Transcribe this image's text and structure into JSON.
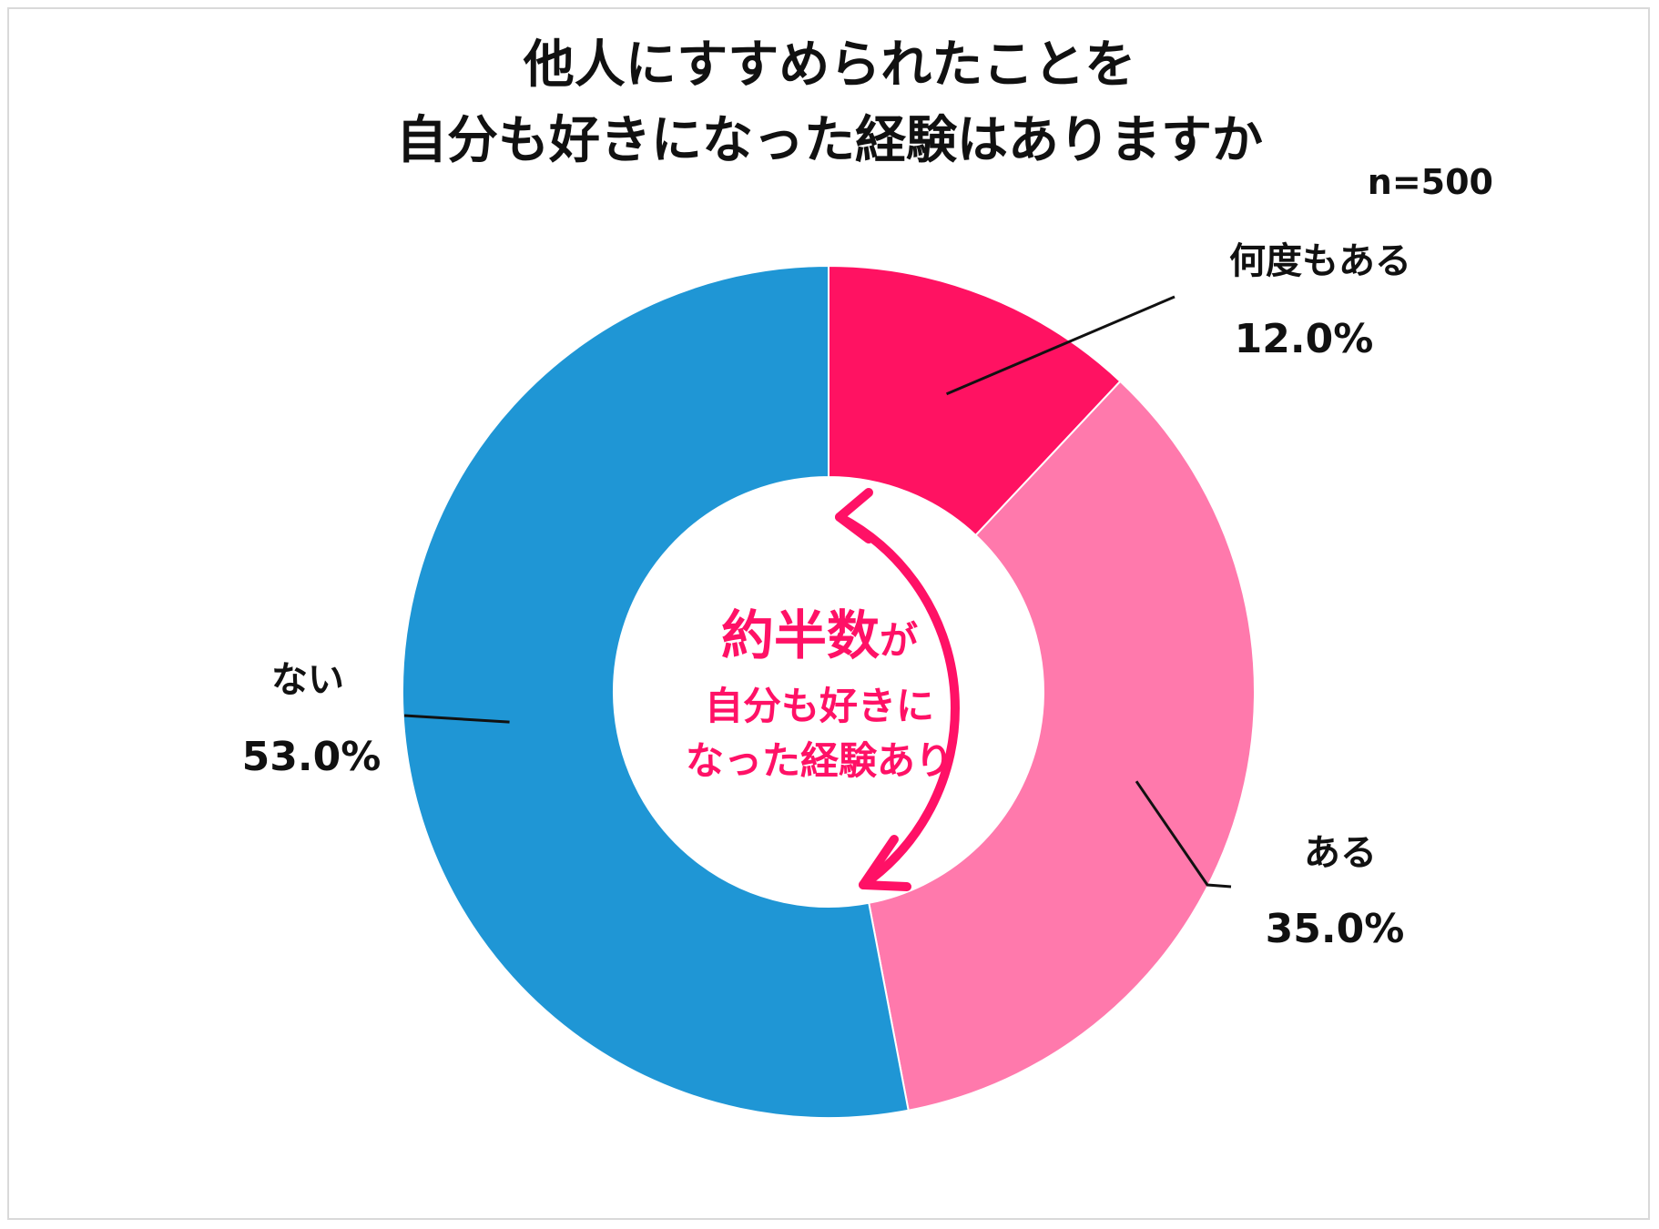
{
  "title_line1": "他人にすすめられたことを",
  "title_line2": "自分も好きになった経験はありますか",
  "sample_size": "n=500",
  "center_annotation": {
    "line1_big": "約半数",
    "line1_small": "が",
    "line2": "自分も好きに",
    "line3": "なった経験あり"
  },
  "colors": {
    "many_times": "#ff1262",
    "yes": "#ff79ac",
    "no": "#1f96d5",
    "annotation": "#ff1166"
  },
  "chart_data": {
    "type": "pie",
    "style": "donut",
    "title": "他人にすすめられたことを自分も好きになった経験はありますか",
    "n": 500,
    "unit": "%",
    "categories": [
      "何度もある",
      "ある",
      "ない"
    ],
    "values": [
      12.0,
      35.0,
      53.0
    ],
    "value_labels": [
      "12.0%",
      "35.0%",
      "53.0%"
    ]
  }
}
